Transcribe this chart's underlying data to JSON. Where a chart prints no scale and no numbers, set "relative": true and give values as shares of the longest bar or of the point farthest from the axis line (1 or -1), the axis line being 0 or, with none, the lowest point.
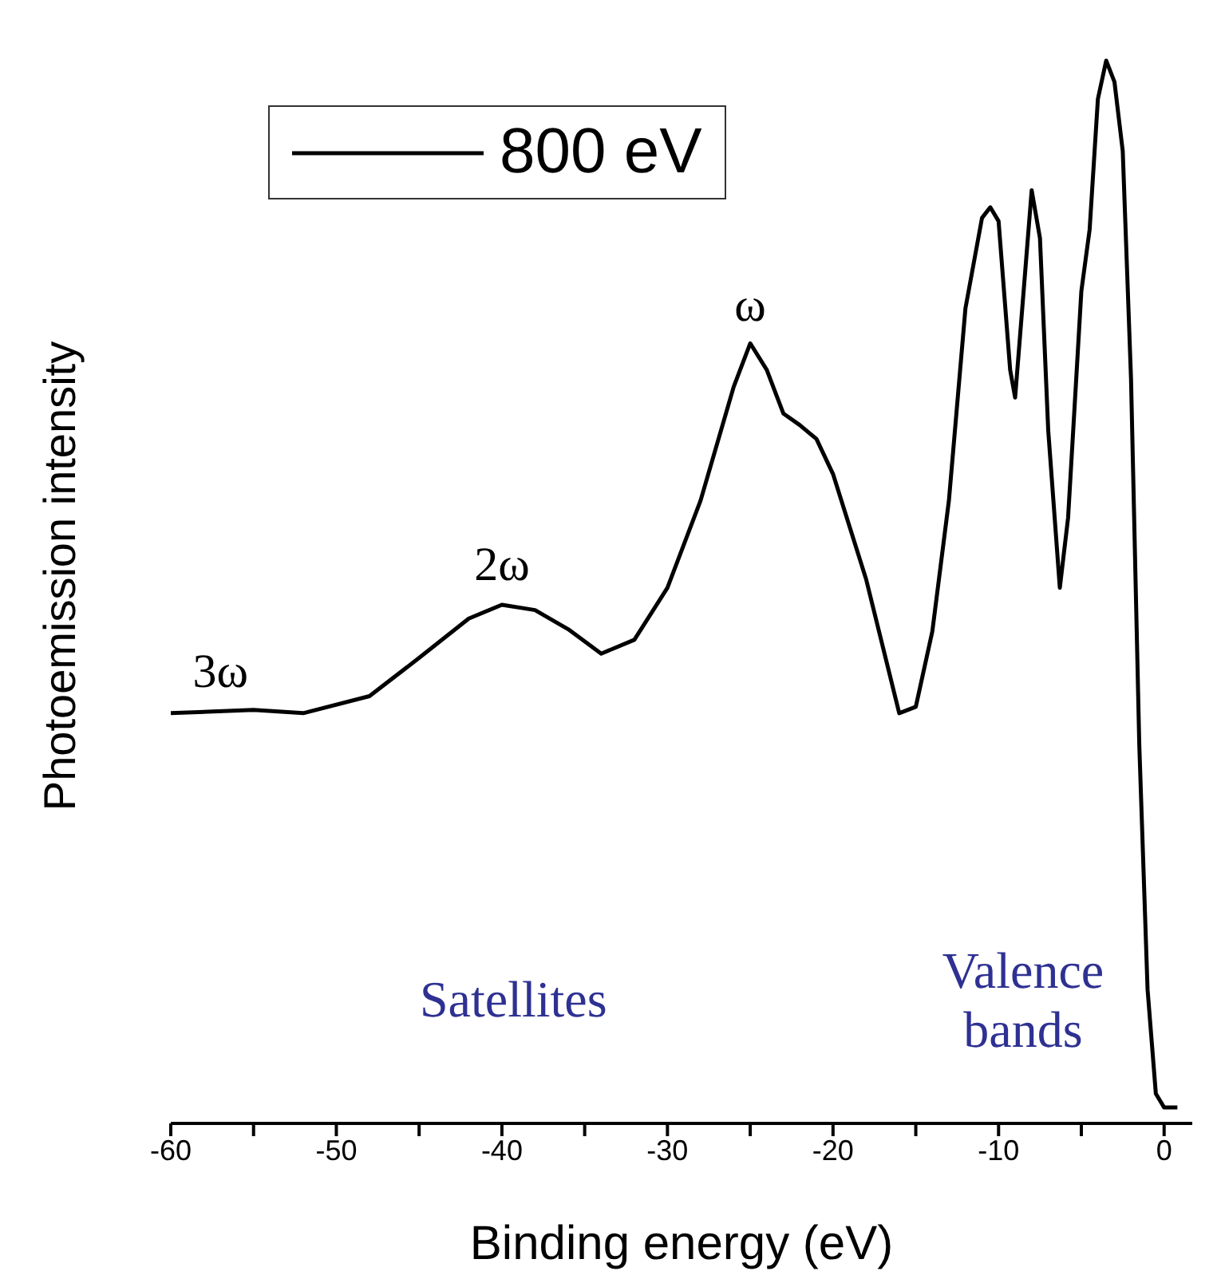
{
  "chart_data": {
    "type": "line",
    "relative": true,
    "xlabel": "Binding energy (eV)",
    "ylabel": "Photoemission intensity",
    "xlim": [
      -60,
      1.7
    ],
    "xticks": [
      -60,
      {
        "value": -55,
        "label": null
      },
      -50,
      {
        "value": -45,
        "label": null
      },
      -40,
      {
        "value": -35,
        "label": null
      },
      -30,
      {
        "value": -25,
        "label": null
      },
      -20,
      {
        "value": -15,
        "label": null
      },
      -10,
      {
        "value": -5,
        "label": null
      },
      0
    ],
    "legend": "top left",
    "series": [
      {
        "name": "800 eV",
        "color": "#000000",
        "x": [
          -60,
          -55,
          -52,
          -48,
          -45,
          -42,
          -40,
          -38,
          -36,
          -34,
          -32,
          -30,
          -28,
          -26,
          -25,
          -24,
          -23,
          -22,
          -21,
          -20,
          -18,
          -16,
          -15,
          -14,
          -13,
          -12,
          -11,
          -10.5,
          -10,
          -9.3,
          -9,
          -8,
          -7.5,
          -7,
          -6.3,
          -5.8,
          -5,
          -4.5,
          -4,
          -3.5,
          -3,
          -2.5,
          -2,
          -1.5,
          -1,
          -0.5,
          0,
          0.8
        ],
        "values": [
          0.386,
          0.389,
          0.386,
          0.402,
          0.438,
          0.475,
          0.488,
          0.483,
          0.465,
          0.442,
          0.455,
          0.504,
          0.586,
          0.693,
          0.734,
          0.709,
          0.668,
          0.657,
          0.644,
          0.611,
          0.512,
          0.386,
          0.392,
          0.463,
          0.586,
          0.767,
          0.852,
          0.862,
          0.849,
          0.709,
          0.683,
          0.878,
          0.833,
          0.652,
          0.504,
          0.57,
          0.783,
          0.841,
          0.964,
          1,
          0.98,
          0.915,
          0.701,
          0.356,
          0.126,
          0.028,
          0.015,
          0.015
        ]
      }
    ],
    "annotations": [
      {
        "text": "3ω",
        "x": -57,
        "y": 0.39
      },
      {
        "text": "2ω",
        "x": -40,
        "y": 0.49
      },
      {
        "text": "ω",
        "x": -25,
        "y": 0.734
      },
      "Satellites",
      "Valence bands"
    ]
  }
}
